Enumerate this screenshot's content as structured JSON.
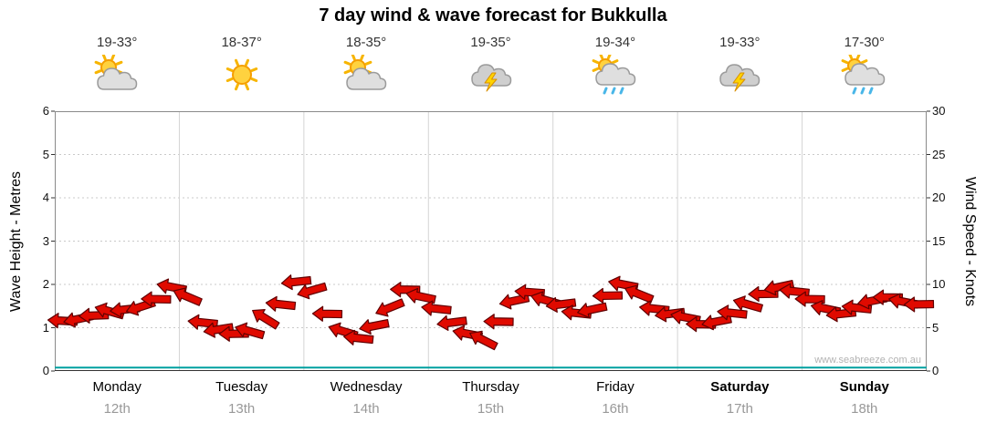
{
  "title": "7 day wind & wave forecast for Bukkulla",
  "watermark": "www.seabreeze.com.au",
  "axes": {
    "left_label": "Wave Height - Metres",
    "right_label": "Wind Speed - Knots",
    "left_ticks": [
      0,
      1,
      2,
      3,
      4,
      5,
      6
    ],
    "right_ticks": [
      0,
      5,
      10,
      15,
      20,
      25,
      30
    ]
  },
  "days": [
    {
      "name": "Monday",
      "date": "12th",
      "temp": "19-33°",
      "icon": "sun-cloud",
      "bold": false
    },
    {
      "name": "Tuesday",
      "date": "13th",
      "temp": "18-37°",
      "icon": "sun",
      "bold": false
    },
    {
      "name": "Wednesday",
      "date": "14th",
      "temp": "18-35°",
      "icon": "sun-cloud",
      "bold": false
    },
    {
      "name": "Thursday",
      "date": "15th",
      "temp": "19-35°",
      "icon": "storm",
      "bold": false
    },
    {
      "name": "Friday",
      "date": "16th",
      "temp": "19-34°",
      "icon": "sun-showers",
      "bold": false
    },
    {
      "name": "Saturday",
      "date": "17th",
      "temp": "19-33°",
      "icon": "storm",
      "bold": true
    },
    {
      "name": "Sunday",
      "date": "18th",
      "temp": "17-30°",
      "icon": "sun-showers",
      "bold": true
    }
  ],
  "chart_data": {
    "type": "line",
    "title": "7 day wind & wave forecast for Bukkulla",
    "x_axis": {
      "categories": [
        "Monday 12th",
        "Tuesday 13th",
        "Wednesday 14th",
        "Thursday 15th",
        "Friday 16th",
        "Saturday 17th",
        "Sunday 18th"
      ],
      "total_hours": 168,
      "x_start_hour": 1.5,
      "x_step_hours": 3
    },
    "left_axis": {
      "label": "Wave Height - Metres",
      "range": [
        0,
        6
      ]
    },
    "right_axis": {
      "label": "Wind Speed - Knots",
      "range": [
        0,
        30
      ]
    },
    "grid": true,
    "legend_position": "none",
    "series": [
      {
        "name": "Wind Speed",
        "unit": "knots",
        "axis": "right",
        "marker": "red-wind-arrow",
        "values": [
          5.8,
          6.0,
          6.4,
          6.9,
          7.1,
          7.4,
          8.3,
          9.7,
          8.6,
          5.6,
          4.8,
          4.3,
          4.6,
          6.1,
          7.7,
          10.3,
          9.3,
          6.6,
          4.6,
          3.8,
          5.2,
          7.3,
          9.4,
          8.6,
          7.2,
          5.6,
          4.3,
          3.6,
          5.7,
          8.1,
          9.1,
          8.2,
          7.7,
          6.7,
          7.1,
          8.7,
          10.0,
          8.9,
          7.2,
          6.6,
          6.2,
          5.4,
          5.7,
          6.7,
          7.7,
          8.9,
          9.7,
          9.2,
          8.3,
          7.2,
          6.6,
          7.3,
          8.1,
          8.5,
          8.0,
          7.7
        ],
        "directions_deg": [
          183,
          168,
          178,
          196,
          174,
          162,
          181,
          191,
          203,
          186,
          171,
          179,
          196,
          212,
          186,
          174,
          164,
          181,
          197,
          186,
          169,
          158,
          181,
          192,
          186,
          173,
          191,
          207,
          181,
          168,
          184,
          196,
          173,
          186,
          168,
          179,
          191,
          202,
          186,
          173,
          191,
          181,
          169,
          186,
          196,
          179,
          168,
          186,
          181,
          192,
          174,
          186,
          169,
          181,
          191,
          179
        ]
      },
      {
        "name": "Wave Height",
        "unit": "m",
        "axis": "left",
        "marker": "teal-line",
        "approx_constant_value": 0.08
      }
    ],
    "colors": {
      "wind_arrow_fill": "#e00a00",
      "wind_arrow_outline": "#5f0000",
      "wave_line": "#00a0a0",
      "gridline": "#c9c9c9",
      "day_separator": "#d4d4d4",
      "plot_border": "#8a8a8a"
    }
  }
}
